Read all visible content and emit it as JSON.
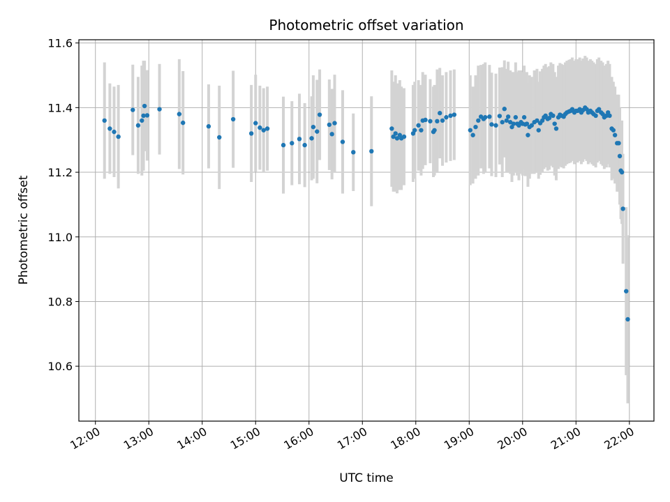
{
  "chart_data": {
    "type": "scatter",
    "title": "Photometric offset variation",
    "xlabel": "UTC time",
    "ylabel": "Photometric offset",
    "x_unit": "hours UTC",
    "xlim": [
      11.69,
      22.46
    ],
    "ylim": [
      10.43,
      11.61
    ],
    "x_ticks": [
      12,
      13,
      14,
      15,
      16,
      17,
      18,
      19,
      20,
      21,
      22
    ],
    "x_tick_labels": [
      "12:00",
      "13:00",
      "14:00",
      "15:00",
      "16:00",
      "17:00",
      "18:00",
      "19:00",
      "20:00",
      "21:00",
      "22:00"
    ],
    "y_ticks": [
      10.6,
      10.8,
      11.0,
      11.2,
      11.4,
      11.6
    ],
    "y_tick_labels": [
      "10.6",
      "10.8",
      "11.0",
      "11.2",
      "11.4",
      "11.6"
    ],
    "grid": true,
    "point_color": "#1f77b4",
    "errorbar_color": "#d3d3d3",
    "points": [
      [
        12.17,
        11.36,
        0.18
      ],
      [
        12.27,
        11.335,
        0.14
      ],
      [
        12.35,
        11.325,
        0.14
      ],
      [
        12.43,
        11.31,
        0.16
      ],
      [
        12.7,
        11.393,
        0.14
      ],
      [
        12.8,
        11.345,
        0.15
      ],
      [
        12.87,
        11.36,
        0.17
      ],
      [
        12.92,
        11.405,
        0.14
      ],
      [
        12.9,
        11.375,
        0.17
      ],
      [
        12.97,
        11.376,
        0.14
      ],
      [
        13.2,
        11.395,
        0.14
      ],
      [
        13.57,
        11.38,
        0.17
      ],
      [
        13.64,
        11.353,
        0.16
      ],
      [
        14.12,
        11.342,
        0.13
      ],
      [
        14.32,
        11.308,
        0.16
      ],
      [
        14.58,
        11.364,
        0.15
      ],
      [
        14.92,
        11.32,
        0.15
      ],
      [
        15.0,
        11.352,
        0.15
      ],
      [
        15.08,
        11.338,
        0.13
      ],
      [
        15.15,
        11.33,
        0.13
      ],
      [
        15.22,
        11.335,
        0.13
      ],
      [
        15.52,
        11.284,
        0.15
      ],
      [
        15.68,
        11.29,
        0.13
      ],
      [
        15.82,
        11.303,
        0.14
      ],
      [
        15.92,
        11.284,
        0.13
      ],
      [
        16.05,
        11.305,
        0.13
      ],
      [
        16.08,
        11.34,
        0.16
      ],
      [
        16.15,
        11.326,
        0.16
      ],
      [
        16.2,
        11.378,
        0.14
      ],
      [
        16.38,
        11.347,
        0.14
      ],
      [
        16.43,
        11.318,
        0.14
      ],
      [
        16.48,
        11.352,
        0.15
      ],
      [
        16.63,
        11.294,
        0.16
      ],
      [
        16.83,
        11.262,
        0.12
      ],
      [
        17.17,
        11.265,
        0.17
      ],
      [
        17.55,
        11.335,
        0.18
      ],
      [
        17.58,
        11.31,
        0.17
      ],
      [
        17.62,
        11.32,
        0.18
      ],
      [
        17.65,
        11.305,
        0.17
      ],
      [
        17.7,
        11.315,
        0.17
      ],
      [
        17.73,
        11.305,
        0.16
      ],
      [
        17.78,
        11.31,
        0.15
      ],
      [
        17.95,
        11.32,
        0.15
      ],
      [
        17.98,
        11.33,
        0.15
      ],
      [
        18.05,
        11.345,
        0.14
      ],
      [
        18.1,
        11.33,
        0.14
      ],
      [
        18.13,
        11.36,
        0.15
      ],
      [
        18.18,
        11.362,
        0.14
      ],
      [
        18.27,
        11.358,
        0.13
      ],
      [
        18.33,
        11.325,
        0.14
      ],
      [
        18.35,
        11.33,
        0.14
      ],
      [
        18.4,
        11.358,
        0.16
      ],
      [
        18.45,
        11.383,
        0.14
      ],
      [
        18.5,
        11.36,
        0.14
      ],
      [
        18.57,
        11.37,
        0.14
      ],
      [
        18.65,
        11.375,
        0.14
      ],
      [
        18.72,
        11.378,
        0.14
      ],
      [
        19.02,
        11.33,
        0.17
      ],
      [
        19.07,
        11.315,
        0.15
      ],
      [
        19.12,
        11.34,
        0.16
      ],
      [
        19.17,
        11.36,
        0.17
      ],
      [
        19.22,
        11.372,
        0.16
      ],
      [
        19.27,
        11.365,
        0.17
      ],
      [
        19.3,
        11.37,
        0.17
      ],
      [
        19.38,
        11.372,
        0.16
      ],
      [
        19.42,
        11.348,
        0.16
      ],
      [
        19.5,
        11.345,
        0.16
      ],
      [
        19.57,
        11.374,
        0.15
      ],
      [
        19.62,
        11.355,
        0.17
      ],
      [
        19.66,
        11.396,
        0.15
      ],
      [
        19.7,
        11.36,
        0.16
      ],
      [
        19.73,
        11.372,
        0.17
      ],
      [
        19.77,
        11.355,
        0.16
      ],
      [
        19.8,
        11.34,
        0.17
      ],
      [
        19.83,
        11.35,
        0.16
      ],
      [
        19.87,
        11.37,
        0.17
      ],
      [
        19.9,
        11.35,
        0.16
      ],
      [
        19.93,
        11.345,
        0.17
      ],
      [
        19.97,
        11.355,
        0.16
      ],
      [
        20.0,
        11.35,
        0.16
      ],
      [
        20.03,
        11.37,
        0.16
      ],
      [
        20.05,
        11.348,
        0.16
      ],
      [
        20.08,
        11.35,
        0.16
      ],
      [
        20.1,
        11.315,
        0.16
      ],
      [
        20.13,
        11.34,
        0.16
      ],
      [
        20.17,
        11.345,
        0.15
      ],
      [
        20.22,
        11.355,
        0.16
      ],
      [
        20.27,
        11.36,
        0.16
      ],
      [
        20.3,
        11.33,
        0.15
      ],
      [
        20.33,
        11.352,
        0.16
      ],
      [
        20.37,
        11.36,
        0.16
      ],
      [
        20.4,
        11.37,
        0.16
      ],
      [
        20.43,
        11.375,
        0.16
      ],
      [
        20.47,
        11.365,
        0.16
      ],
      [
        20.5,
        11.368,
        0.16
      ],
      [
        20.53,
        11.38,
        0.16
      ],
      [
        20.57,
        11.375,
        0.16
      ],
      [
        20.6,
        11.35,
        0.16
      ],
      [
        20.63,
        11.335,
        0.16
      ],
      [
        20.67,
        11.37,
        0.16
      ],
      [
        20.7,
        11.378,
        0.16
      ],
      [
        20.73,
        11.375,
        0.16
      ],
      [
        20.77,
        11.372,
        0.16
      ],
      [
        20.8,
        11.38,
        0.16
      ],
      [
        20.83,
        11.385,
        0.16
      ],
      [
        20.87,
        11.388,
        0.16
      ],
      [
        20.9,
        11.39,
        0.16
      ],
      [
        20.93,
        11.395,
        0.16
      ],
      [
        20.97,
        11.385,
        0.16
      ],
      [
        21.0,
        11.39,
        0.16
      ],
      [
        21.03,
        11.39,
        0.16
      ],
      [
        21.07,
        11.395,
        0.16
      ],
      [
        21.1,
        11.385,
        0.16
      ],
      [
        21.13,
        11.392,
        0.16
      ],
      [
        21.17,
        11.4,
        0.16
      ],
      [
        21.2,
        11.395,
        0.16
      ],
      [
        21.23,
        11.385,
        0.16
      ],
      [
        21.27,
        11.39,
        0.16
      ],
      [
        21.3,
        11.385,
        0.16
      ],
      [
        21.33,
        11.38,
        0.16
      ],
      [
        21.37,
        11.375,
        0.16
      ],
      [
        21.4,
        11.39,
        0.16
      ],
      [
        21.43,
        11.395,
        0.16
      ],
      [
        21.47,
        11.385,
        0.16
      ],
      [
        21.5,
        11.38,
        0.16
      ],
      [
        21.53,
        11.37,
        0.16
      ],
      [
        21.57,
        11.375,
        0.16
      ],
      [
        21.6,
        11.385,
        0.16
      ],
      [
        21.63,
        11.375,
        0.16
      ],
      [
        21.67,
        11.335,
        0.16
      ],
      [
        21.7,
        11.33,
        0.15
      ],
      [
        21.73,
        11.315,
        0.15
      ],
      [
        21.77,
        11.29,
        0.15
      ],
      [
        21.8,
        11.29,
        0.15
      ],
      [
        21.82,
        11.25,
        0.15
      ],
      [
        21.84,
        11.205,
        0.15
      ],
      [
        21.86,
        11.2,
        0.16
      ],
      [
        21.88,
        11.087,
        0.17
      ],
      [
        21.94,
        10.832,
        0.26
      ],
      [
        21.97,
        10.745,
        0.26
      ]
    ]
  }
}
